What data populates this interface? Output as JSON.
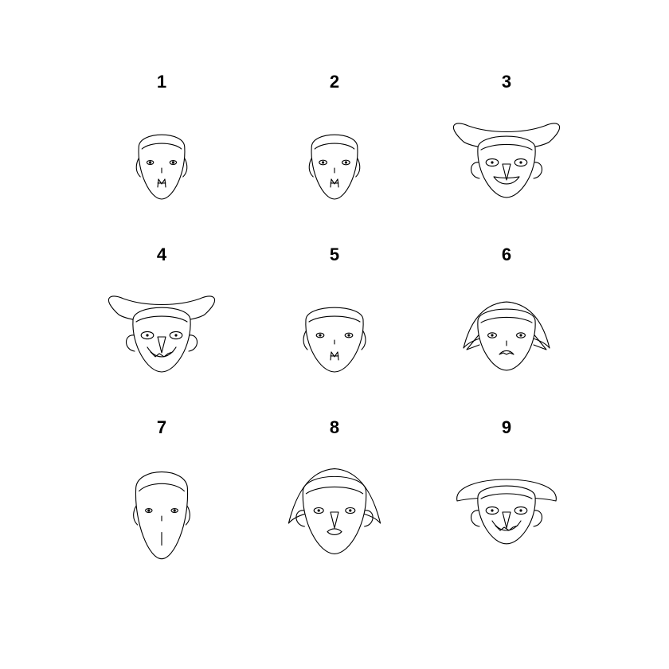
{
  "figure": {
    "background": "#ffffff",
    "stroke_color": "#000000",
    "faces": [
      {
        "label": "1",
        "hat": "none",
        "mouth": "goatee",
        "head_w": 0.8,
        "head_h": 1.0,
        "eye": 0.7,
        "nose": "line",
        "ear": "side"
      },
      {
        "label": "2",
        "hat": "none",
        "mouth": "goatee",
        "head_w": 0.8,
        "head_h": 1.0,
        "eye": 0.8,
        "nose": "line",
        "ear": "side"
      },
      {
        "label": "3",
        "hat": "horns",
        "mouth": "smile",
        "head_w": 1.0,
        "head_h": 0.95,
        "eye": 1.3,
        "nose": "triangle",
        "ear": "round"
      },
      {
        "label": "4",
        "hat": "horns",
        "mouth": "grin",
        "head_w": 1.0,
        "head_h": 1.0,
        "eye": 1.3,
        "nose": "triangle",
        "ear": "round"
      },
      {
        "label": "5",
        "hat": "none",
        "mouth": "goatee",
        "head_w": 1.0,
        "head_h": 1.0,
        "eye": 0.8,
        "nose": "dot",
        "ear": "side"
      },
      {
        "label": "6",
        "hat": "hood",
        "mouth": "frown",
        "head_w": 1.0,
        "head_h": 0.95,
        "eye": 0.9,
        "nose": "line",
        "ear": "spike"
      },
      {
        "label": "7",
        "hat": "none",
        "mouth": "line",
        "head_w": 0.9,
        "head_h": 1.35,
        "eye": 0.7,
        "nose": "line",
        "ear": "side"
      },
      {
        "label": "8",
        "hat": "hood",
        "mouth": "lips",
        "head_w": 1.1,
        "head_h": 1.2,
        "eye": 1.0,
        "nose": "triangle",
        "ear": "round"
      },
      {
        "label": "9",
        "hat": "beret",
        "mouth": "grin",
        "head_w": 1.0,
        "head_h": 0.9,
        "eye": 1.3,
        "nose": "triangle",
        "ear": "round"
      }
    ]
  }
}
